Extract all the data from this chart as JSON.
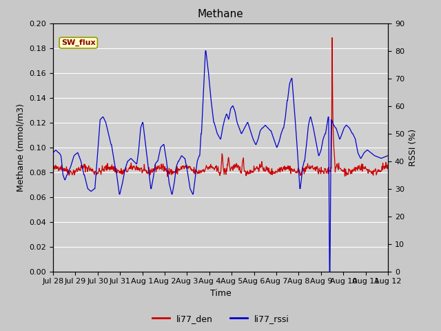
{
  "title": "Methane",
  "xlabel": "Time",
  "ylabel_left": "Methane (mmol/m3)",
  "ylabel_right": "RSSI (%)",
  "ylim_left": [
    0.0,
    0.2
  ],
  "ylim_right": [
    0,
    90
  ],
  "yticks_left": [
    0.0,
    0.02,
    0.04,
    0.06,
    0.08,
    0.1,
    0.12,
    0.14,
    0.16,
    0.18,
    0.2
  ],
  "yticks_right": [
    0,
    10,
    20,
    30,
    40,
    50,
    60,
    70,
    80,
    90
  ],
  "xtick_labels": [
    "Jul 28",
    "Jul 29",
    "Jul 30",
    "Jul 31",
    "Aug 1",
    "Aug 2",
    "Aug 3",
    "Aug 4",
    "Aug 5",
    "Aug 6",
    "Aug 7",
    "Aug 8",
    "Aug 9",
    "Aug 10",
    "Aug 11",
    "Aug 12"
  ],
  "background_color": "#c8c8c8",
  "plot_bg_color": "#d0d0d0",
  "grid_color": "#ffffff",
  "line_color_den": "#cc0000",
  "line_color_rssi": "#0000cc",
  "legend_den": "li77_den",
  "legend_rssi": "li77_rssi",
  "sw_flux_box_color": "#ffffcc",
  "sw_flux_text_color": "#880000",
  "sw_flux_border_color": "#999900",
  "title_fontsize": 11,
  "axis_fontsize": 9,
  "tick_fontsize": 8
}
